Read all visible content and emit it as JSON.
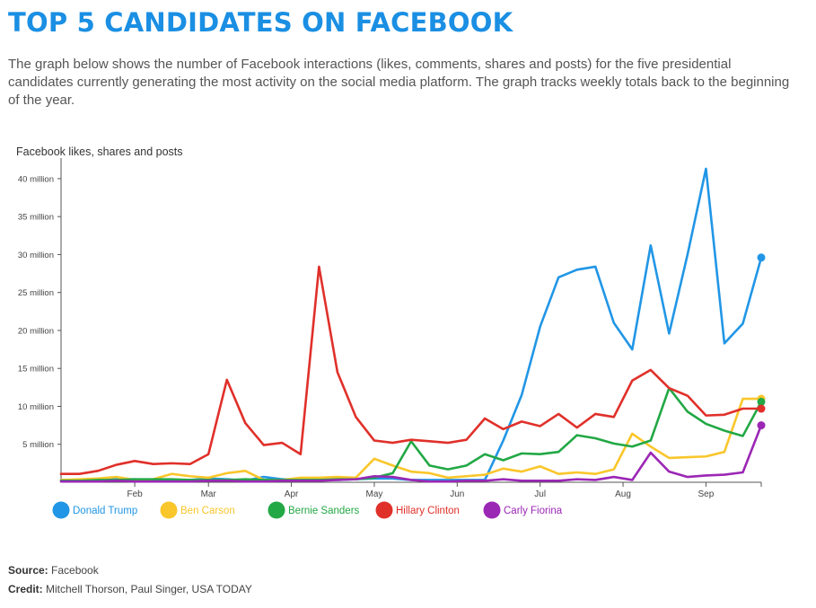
{
  "title": "TOP 5 CANDIDATES ON FACEBOOK",
  "description": "The graph below shows the number of Facebook interactions (likes, comments, shares and posts) for the five presidential candidates currently generating the most activity on the social media platform. The graph tracks weekly totals back to the beginning of the year.",
  "footer": {
    "source_label": "Source:",
    "source_value": "Facebook",
    "credit_label": "Credit:",
    "credit_value": "Mitchell Thorson, Paul Singer, USA TODAY"
  },
  "chart_data": {
    "type": "line",
    "title": "",
    "ylabel": "Facebook likes, shares and posts",
    "ylim": [
      0,
      42
    ],
    "yunit": "million",
    "yticks": [
      5,
      10,
      15,
      20,
      25,
      30,
      35,
      40
    ],
    "ytick_labels": [
      "5 million",
      "10 million",
      "15 million",
      "20 million",
      "25 million",
      "30 million",
      "35 million",
      "40 million"
    ],
    "xticks": [
      {
        "label": "Feb",
        "week": 4
      },
      {
        "label": "Mar",
        "week": 8
      },
      {
        "label": "Apr",
        "week": 12.5
      },
      {
        "label": "May",
        "week": 17
      },
      {
        "label": "Jun",
        "week": 21.5
      },
      {
        "label": "Jul",
        "week": 26
      },
      {
        "label": "Aug",
        "week": 30.5
      },
      {
        "label": "Sep",
        "week": 35
      }
    ],
    "num_weeks": 38,
    "legend_position": "bottom",
    "series": [
      {
        "name": "Donald Trump",
        "color": "#2196e6",
        "values": [
          0.3,
          0.3,
          0.4,
          0.4,
          0.4,
          0.3,
          0.3,
          0.3,
          0.5,
          0.4,
          0.2,
          0.7,
          0.4,
          0.4,
          0.4,
          0.3,
          0.4,
          0.5,
          0.5,
          0.3,
          0.3,
          0.3,
          0.3,
          0.3,
          5.5,
          11.5,
          20.5,
          27.0,
          28.0,
          28.4,
          21.0,
          17.5,
          31.2,
          19.6,
          30.0,
          41.3,
          18.3,
          20.9,
          29.6
        ]
      },
      {
        "name": "Ben Carson",
        "color": "#f9c62b",
        "values": [
          0.3,
          0.4,
          0.5,
          0.7,
          0.3,
          0.4,
          1.1,
          0.8,
          0.6,
          1.2,
          1.5,
          0.3,
          0.3,
          0.6,
          0.6,
          0.7,
          0.6,
          3.1,
          2.2,
          1.4,
          1.2,
          0.6,
          0.8,
          1.0,
          1.8,
          1.4,
          2.1,
          1.1,
          1.3,
          1.1,
          1.7,
          6.4,
          4.7,
          3.2,
          3.3,
          3.4,
          4.0,
          11.0,
          11.0
        ]
      },
      {
        "name": "Bernie Sanders",
        "color": "#22a845",
        "values": [
          0.2,
          0.2,
          0.3,
          0.3,
          0.4,
          0.4,
          0.4,
          0.3,
          0.3,
          0.3,
          0.4,
          0.3,
          0.3,
          0.3,
          0.3,
          0.4,
          0.4,
          0.6,
          1.2,
          5.4,
          2.2,
          1.7,
          2.2,
          3.7,
          2.9,
          3.8,
          3.7,
          4.0,
          6.2,
          5.8,
          5.1,
          4.7,
          5.5,
          12.4,
          9.3,
          7.7,
          6.8,
          6.1,
          10.6
        ]
      },
      {
        "name": "Hillary Clinton",
        "color": "#e0302a",
        "values": [
          1.1,
          1.1,
          1.5,
          2.3,
          2.8,
          2.4,
          2.5,
          2.4,
          3.7,
          13.5,
          7.8,
          4.9,
          5.2,
          3.7,
          28.4,
          14.5,
          8.6,
          5.5,
          5.2,
          5.6,
          5.4,
          5.2,
          5.6,
          8.4,
          7.0,
          8.0,
          7.4,
          9.0,
          7.2,
          9.0,
          8.6,
          13.4,
          14.8,
          12.4,
          11.4,
          8.8,
          8.9,
          9.7,
          9.7
        ]
      },
      {
        "name": "Carly Fiorina",
        "color": "#9b27b5",
        "values": [
          0.1,
          0.1,
          0.1,
          0.2,
          0.1,
          0.1,
          0.1,
          0.1,
          0.2,
          0.2,
          0.1,
          0.1,
          0.2,
          0.2,
          0.2,
          0.3,
          0.4,
          0.8,
          0.7,
          0.3,
          0.1,
          0.1,
          0.2,
          0.2,
          0.4,
          0.2,
          0.2,
          0.2,
          0.4,
          0.3,
          0.7,
          0.3,
          3.9,
          1.4,
          0.7,
          0.9,
          1.0,
          1.3,
          7.5
        ]
      }
    ]
  }
}
